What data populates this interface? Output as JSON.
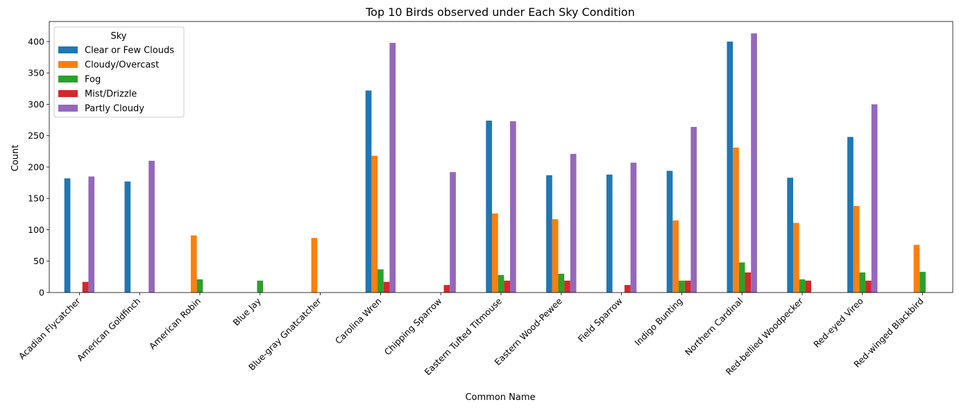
{
  "chart_data": {
    "type": "bar",
    "title": "Top 10 Birds observed under Each Sky Condition",
    "xlabel": "Common Name",
    "ylabel": "Count",
    "ylim": [
      0,
      432
    ],
    "yticks": [
      0,
      50,
      100,
      150,
      200,
      250,
      300,
      350,
      400
    ],
    "grid": false,
    "legend": {
      "title": "Sky",
      "placement": "top-left"
    },
    "categories": [
      "Acadian Flycatcher",
      "American Goldfinch",
      "American Robin",
      "Blue Jay",
      "Blue-gray Gnatcatcher",
      "Carolina Wren",
      "Chipping Sparrow",
      "Eastern Tufted Titmouse",
      "Eastern Wood-Pewee",
      "Field Sparrow",
      "Indigo Bunting",
      "Northern Cardinal",
      "Red-bellied Woodpecker",
      "Red-eyed Vireo",
      "Red-winged Blackbird"
    ],
    "series": [
      {
        "name": "Clear or Few Clouds",
        "color": "#1f77b4",
        "values": [
          182,
          177,
          0,
          0,
          0,
          322,
          0,
          274,
          187,
          188,
          194,
          400,
          183,
          248,
          0
        ]
      },
      {
        "name": "Cloudy/Overcast",
        "color": "#ff7f0e",
        "values": [
          0,
          0,
          91,
          0,
          87,
          218,
          0,
          126,
          117,
          0,
          115,
          231,
          111,
          138,
          76
        ]
      },
      {
        "name": "Fog",
        "color": "#2ca02c",
        "values": [
          0,
          0,
          21,
          19,
          0,
          37,
          0,
          28,
          30,
          0,
          19,
          48,
          21,
          32,
          33
        ]
      },
      {
        "name": "Mist/Drizzle",
        "color": "#d62728",
        "values": [
          17,
          0,
          0,
          0,
          0,
          17,
          12,
          19,
          19,
          12,
          19,
          32,
          19,
          19,
          0
        ]
      },
      {
        "name": "Partly Cloudy",
        "color": "#9467bd",
        "values": [
          185,
          210,
          0,
          0,
          0,
          398,
          192,
          273,
          221,
          207,
          264,
          413,
          0,
          300,
          0
        ]
      }
    ]
  }
}
